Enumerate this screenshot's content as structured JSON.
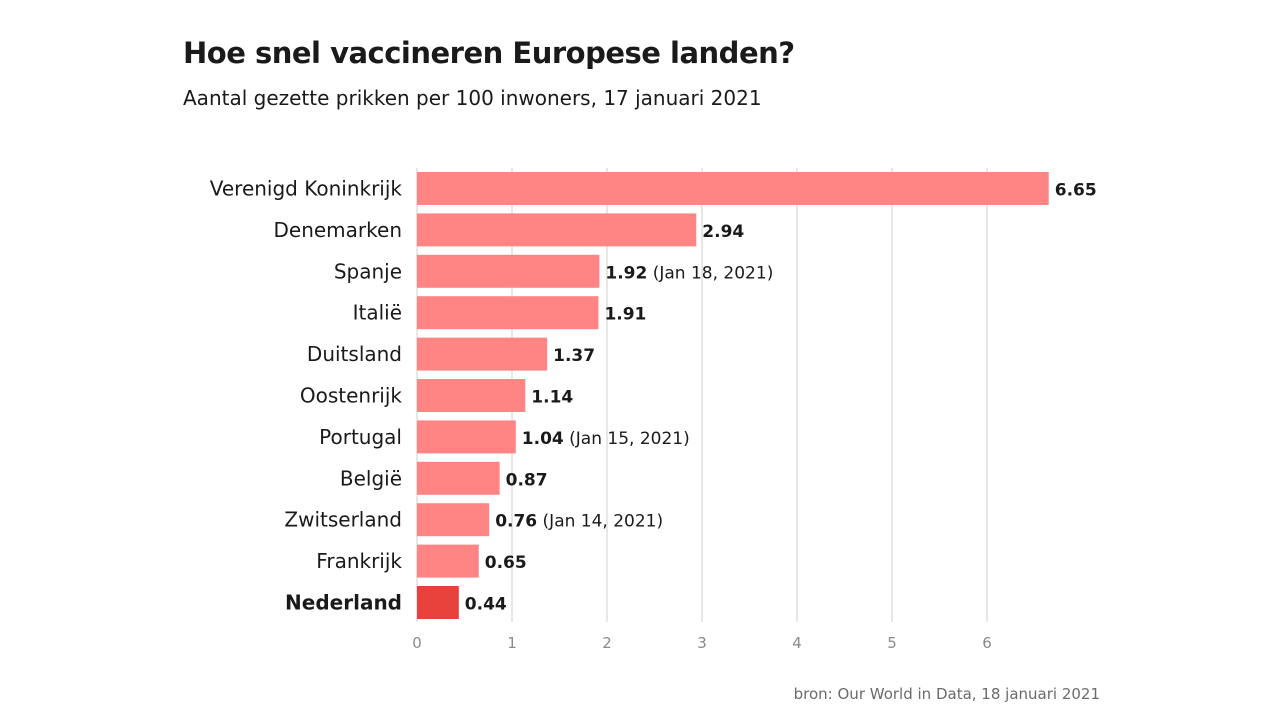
{
  "title": "Hoe snel vaccineren Europese landen?",
  "subtitle": "Aantal gezette prikken per 100 inwoners, 17 januari 2021",
  "source": "bron: Our World in Data, 18 januari 2021",
  "colors": {
    "bar": "#ff8585",
    "highlight": "#e8403a"
  },
  "chart_data": {
    "type": "bar",
    "orientation": "horizontal",
    "categories": [
      "Verenigd Koninkrijk",
      "Denemarken",
      "Spanje",
      "Italië",
      "Duitsland",
      "Oostenrijk",
      "Portugal",
      "België",
      "Zwitserland",
      "Frankrijk",
      "Nederland"
    ],
    "values": [
      6.65,
      2.94,
      1.92,
      1.91,
      1.37,
      1.14,
      1.04,
      0.87,
      0.76,
      0.65,
      0.44
    ],
    "value_labels": [
      "6.65",
      "2.94",
      "1.92",
      "1.91",
      "1.37",
      "1.14",
      "1.04",
      "0.87",
      "0.76",
      "0.65",
      "0.44"
    ],
    "annotations": [
      "",
      "",
      "(Jan 18, 2021)",
      "",
      "",
      "",
      "(Jan 15, 2021)",
      "",
      "(Jan 14, 2021)",
      "",
      ""
    ],
    "highlight": "Nederland",
    "xlim": [
      0,
      7
    ],
    "xticks": [
      0,
      1,
      2,
      3,
      4,
      5,
      6
    ],
    "grid": true
  }
}
